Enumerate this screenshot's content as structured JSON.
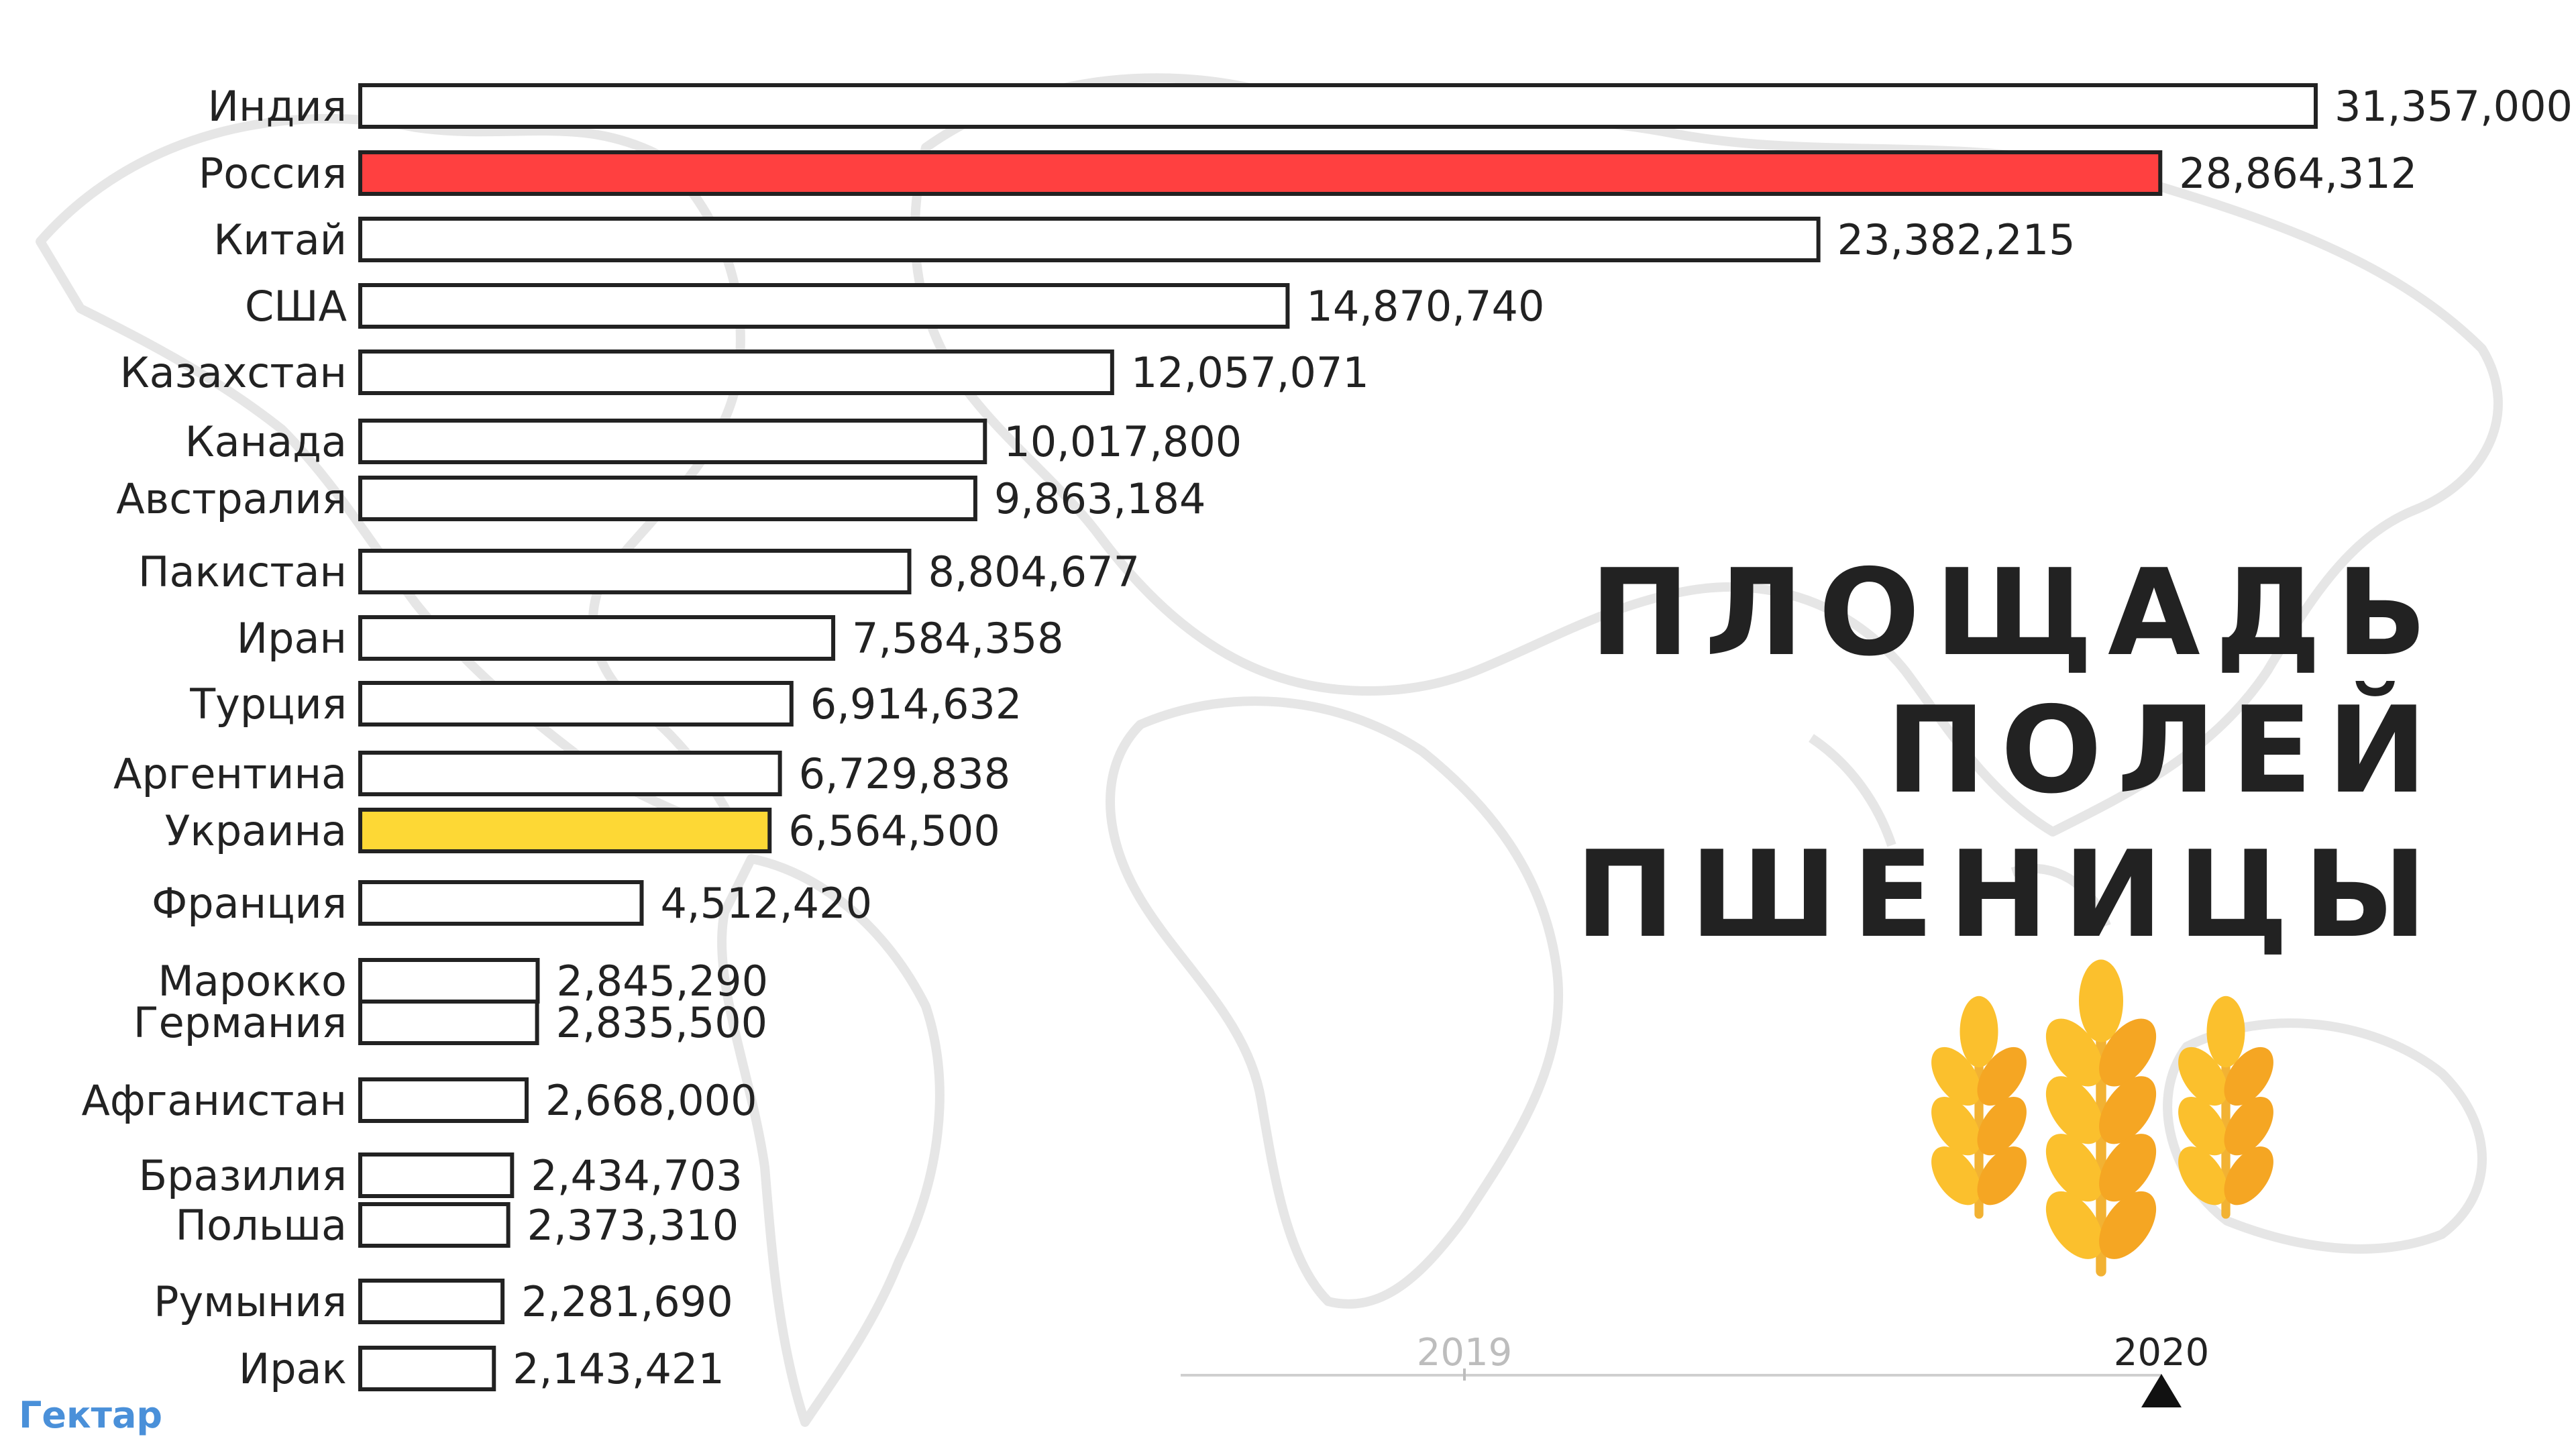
{
  "chart_data": {
    "type": "bar",
    "orientation": "horizontal",
    "title_lines": [
      "ПЛОЩАДЬ",
      "ПОЛЕЙ",
      "ПШЕНИЦЫ"
    ],
    "unit": "Гектар",
    "categories": [
      "Индия",
      "Россия",
      "Китай",
      "США",
      "Казахстан",
      "Канада",
      "Австралия",
      "Пакистан",
      "Иран",
      "Турция",
      "Аргентина",
      "Украина",
      "Франция",
      "Марокко",
      "Германия",
      "Афганистан",
      "Бразилия",
      "Польша",
      "Румыния",
      "Ирак"
    ],
    "values": [
      31357000,
      28864312,
      23382215,
      14870740,
      12057071,
      10017800,
      9863184,
      8804677,
      7584358,
      6914632,
      6729838,
      6564500,
      4512420,
      2845290,
      2835500,
      2668000,
      2434703,
      2373310,
      2281690,
      2143421
    ],
    "value_labels": [
      "31,357,000",
      "28,864,312",
      "23,382,215",
      "14,870,740",
      "12,057,071",
      "10,017,800",
      "9,863,184",
      "8,804,677",
      "7,584,358",
      "6,914,632",
      "6,729,838",
      "6,564,500",
      "4,512,420",
      "2,845,290",
      "2,835,500",
      "2,668,000",
      "2,434,703",
      "2,373,310",
      "2,281,690",
      "2,143,421"
    ],
    "highlight_colors": {
      "Россия": "#ff4040",
      "Украина": "#fdd835"
    },
    "default_bar_color": "#ffffff",
    "xlim": [
      0,
      31357000
    ],
    "timeline": {
      "years": [
        "2019",
        "2020"
      ],
      "current": "2020"
    },
    "legend": "none",
    "grid": false
  }
}
